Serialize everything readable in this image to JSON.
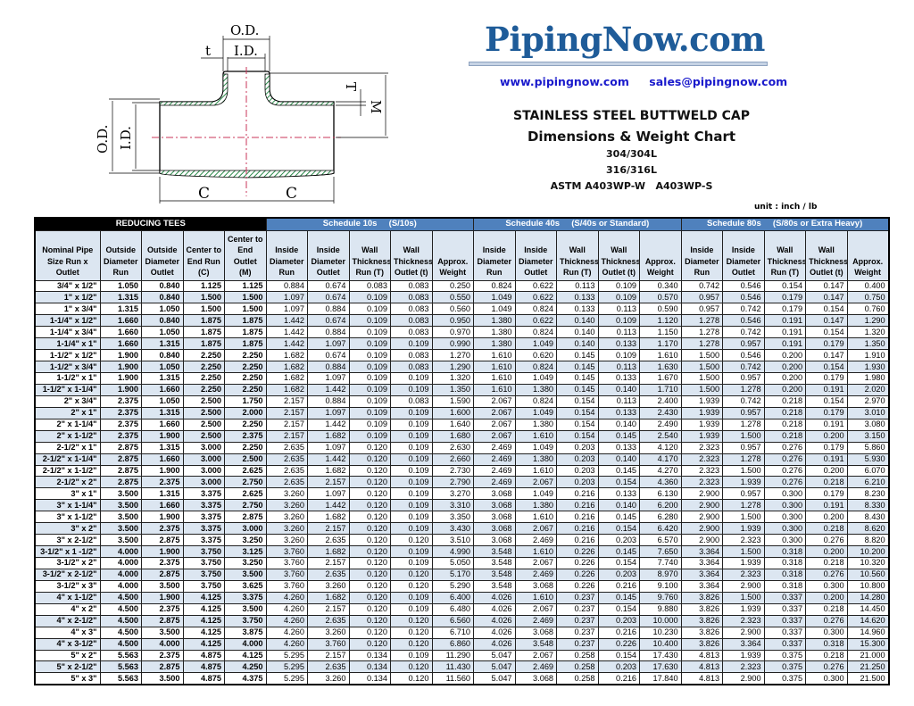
{
  "diagram": {
    "labels": {
      "od_top": "O.D.",
      "id_top": "I.D.",
      "t": "t",
      "T": "T",
      "M": "M",
      "od_left": "O.D.",
      "id_left": "I.D.",
      "c": "C"
    }
  },
  "brand": {
    "logo": "PipingNow.com",
    "website": "www.pipingnow.com",
    "email": "sales@pipingnow.com",
    "color": "#1f5c99"
  },
  "title": {
    "line1": "STAINLESS STEEL BUTTWELD CAP",
    "line2": "Dimensions & Weight Chart",
    "line3": "304/304L",
    "line4": "316/316L",
    "line5": "ASTM A403WP-W   A403WP-S"
  },
  "unit": "unit : inch / lb",
  "table": {
    "groups": [
      "REDUCING TEES",
      "Schedule 10s     (S/10s)",
      "Schedule 40s     (S/40s or Standard)",
      "Schedule 80s     (S/80s or Extra Heavy)"
    ],
    "headers": [
      "Nominal Pipe Size Run x Outlet",
      "Outside Diameter Run",
      "Outside Diameter Outlet",
      "Center to End Run (C)",
      "Center to End Outlet (M)",
      "Inside Diameter Run",
      "Inside Diameter Outlet",
      "Wall Thickness Run (T)",
      "Wall Thickness Outlet (t)",
      "Approx. Weight",
      "Inside Diameter Run",
      "Inside Diameter Outlet",
      "Wall Thickness Run (T)",
      "Wall Thickness Outlet (t)",
      "Approx. Weight",
      "Inside Diameter Run",
      "Inside Diameter Outlet",
      "Wall Thickness Run (T)",
      "Wall Thickness Outlet (t)",
      "Approx. Weight"
    ],
    "rows": [
      [
        "3/4\" x 1/2\"",
        "1.050",
        "0.840",
        "1.125",
        "1.125",
        "0.884",
        "0.674",
        "0.083",
        "0.083",
        "0.250",
        "0.824",
        "0.622",
        "0.113",
        "0.109",
        "0.340",
        "0.742",
        "0.546",
        "0.154",
        "0.147",
        "0.400"
      ],
      [
        "1\" x 1/2\"",
        "1.315",
        "0.840",
        "1.500",
        "1.500",
        "1.097",
        "0.674",
        "0.109",
        "0.083",
        "0.550",
        "1.049",
        "0.622",
        "0.133",
        "0.109",
        "0.570",
        "0.957",
        "0.546",
        "0.179",
        "0.147",
        "0.750"
      ],
      [
        "1\" x 3/4\"",
        "1.315",
        "1.050",
        "1.500",
        "1.500",
        "1.097",
        "0.884",
        "0.109",
        "0.083",
        "0.560",
        "1.049",
        "0.824",
        "0.133",
        "0.113",
        "0.590",
        "0.957",
        "0.742",
        "0.179",
        "0.154",
        "0.760"
      ],
      [
        "1-1/4\" x 1/2\"",
        "1.660",
        "0.840",
        "1.875",
        "1.875",
        "1.442",
        "0.674",
        "0.109",
        "0.083",
        "0.950",
        "1.380",
        "0.622",
        "0.140",
        "0.109",
        "1.120",
        "1.278",
        "0.546",
        "0.191",
        "0.147",
        "1.290"
      ],
      [
        "1-1/4\" x 3/4\"",
        "1.660",
        "1.050",
        "1.875",
        "1.875",
        "1.442",
        "0.884",
        "0.109",
        "0.083",
        "0.970",
        "1.380",
        "0.824",
        "0.140",
        "0.113",
        "1.150",
        "1.278",
        "0.742",
        "0.191",
        "0.154",
        "1.320"
      ],
      [
        "1-1/4\" x 1\"",
        "1.660",
        "1.315",
        "1.875",
        "1.875",
        "1.442",
        "1.097",
        "0.109",
        "0.109",
        "0.990",
        "1.380",
        "1.049",
        "0.140",
        "0.133",
        "1.170",
        "1.278",
        "0.957",
        "0.191",
        "0.179",
        "1.350"
      ],
      [
        "1-1/2\" x 1/2\"",
        "1.900",
        "0.840",
        "2.250",
        "2.250",
        "1.682",
        "0.674",
        "0.109",
        "0.083",
        "1.270",
        "1.610",
        "0.620",
        "0.145",
        "0.109",
        "1.610",
        "1.500",
        "0.546",
        "0.200",
        "0.147",
        "1.910"
      ],
      [
        "1-1/2\" x 3/4\"",
        "1.900",
        "1.050",
        "2.250",
        "2.250",
        "1.682",
        "0.884",
        "0.109",
        "0.083",
        "1.290",
        "1.610",
        "0.824",
        "0.145",
        "0.113",
        "1.630",
        "1.500",
        "0.742",
        "0.200",
        "0.154",
        "1.930"
      ],
      [
        "1-1/2\" x 1\"",
        "1.900",
        "1.315",
        "2.250",
        "2.250",
        "1.682",
        "1.097",
        "0.109",
        "0.109",
        "1.320",
        "1.610",
        "1.049",
        "0.145",
        "0.133",
        "1.670",
        "1.500",
        "0.957",
        "0.200",
        "0.179",
        "1.980"
      ],
      [
        "1-1/2\" x 1-1/4\"",
        "1.900",
        "1.660",
        "2.250",
        "2.250",
        "1.682",
        "1.442",
        "0.109",
        "0.109",
        "1.350",
        "1.610",
        "1.380",
        "0.145",
        "0.140",
        "1.710",
        "1.500",
        "1.278",
        "0.200",
        "0.191",
        "2.020"
      ],
      [
        "2\" x 3/4\"",
        "2.375",
        "1.050",
        "2.500",
        "1.750",
        "2.157",
        "0.884",
        "0.109",
        "0.083",
        "1.590",
        "2.067",
        "0.824",
        "0.154",
        "0.113",
        "2.400",
        "1.939",
        "0.742",
        "0.218",
        "0.154",
        "2.970"
      ],
      [
        "2\" x 1\"",
        "2.375",
        "1.315",
        "2.500",
        "2.000",
        "2.157",
        "1.097",
        "0.109",
        "0.109",
        "1.600",
        "2.067",
        "1.049",
        "0.154",
        "0.133",
        "2.430",
        "1.939",
        "0.957",
        "0.218",
        "0.179",
        "3.010"
      ],
      [
        "2\" x 1-1/4\"",
        "2.375",
        "1.660",
        "2.500",
        "2.250",
        "2.157",
        "1.442",
        "0.109",
        "0.109",
        "1.640",
        "2.067",
        "1.380",
        "0.154",
        "0.140",
        "2.490",
        "1.939",
        "1.278",
        "0.218",
        "0.191",
        "3.080"
      ],
      [
        "2\" x 1-1/2\"",
        "2.375",
        "1.900",
        "2.500",
        "2.375",
        "2.157",
        "1.682",
        "0.109",
        "0.109",
        "1.680",
        "2.067",
        "1.610",
        "0.154",
        "0.145",
        "2.540",
        "1.939",
        "1.500",
        "0.218",
        "0.200",
        "3.150"
      ],
      [
        "2-1/2\" x 1\"",
        "2.875",
        "1.315",
        "3.000",
        "2.250",
        "2.635",
        "1.097",
        "0.120",
        "0.109",
        "2.630",
        "2.469",
        "1.049",
        "0.203",
        "0.133",
        "4.120",
        "2.323",
        "0.957",
        "0.276",
        "0.179",
        "5.860"
      ],
      [
        "2-1/2\" x 1-1/4\"",
        "2.875",
        "1.660",
        "3.000",
        "2.500",
        "2.635",
        "1.442",
        "0.120",
        "0.109",
        "2.660",
        "2.469",
        "1.380",
        "0.203",
        "0.140",
        "4.170",
        "2.323",
        "1.278",
        "0.276",
        "0.191",
        "5.930"
      ],
      [
        "2-1/2\" x 1-1/2\"",
        "2.875",
        "1.900",
        "3.000",
        "2.625",
        "2.635",
        "1.682",
        "0.120",
        "0.109",
        "2.730",
        "2.469",
        "1.610",
        "0.203",
        "0.145",
        "4.270",
        "2.323",
        "1.500",
        "0.276",
        "0.200",
        "6.070"
      ],
      [
        "2-1/2\" x 2\"",
        "2.875",
        "2.375",
        "3.000",
        "2.750",
        "2.635",
        "2.157",
        "0.120",
        "0.109",
        "2.790",
        "2.469",
        "2.067",
        "0.203",
        "0.154",
        "4.360",
        "2.323",
        "1.939",
        "0.276",
        "0.218",
        "6.210"
      ],
      [
        "3\" x 1\"",
        "3.500",
        "1.315",
        "3.375",
        "2.625",
        "3.260",
        "1.097",
        "0.120",
        "0.109",
        "3.270",
        "3.068",
        "1.049",
        "0.216",
        "0.133",
        "6.130",
        "2.900",
        "0.957",
        "0.300",
        "0.179",
        "8.230"
      ],
      [
        "3\" x 1-1/4\"",
        "3.500",
        "1.660",
        "3.375",
        "2.750",
        "3.260",
        "1.442",
        "0.120",
        "0.109",
        "3.310",
        "3.068",
        "1.380",
        "0.216",
        "0.140",
        "6.200",
        "2.900",
        "1.278",
        "0.300",
        "0.191",
        "8.330"
      ],
      [
        "3\" x 1-1/2\"",
        "3.500",
        "1.900",
        "3.375",
        "2.875",
        "3.260",
        "1.682",
        "0.120",
        "0.109",
        "3.350",
        "3.068",
        "1.610",
        "0.216",
        "0.145",
        "6.280",
        "2.900",
        "1.500",
        "0.300",
        "0.200",
        "8.430"
      ],
      [
        "3\" x 2\"",
        "3.500",
        "2.375",
        "3.375",
        "3.000",
        "3.260",
        "2.157",
        "0.120",
        "0.109",
        "3.430",
        "3.068",
        "2.067",
        "0.216",
        "0.154",
        "6.420",
        "2.900",
        "1.939",
        "0.300",
        "0.218",
        "8.620"
      ],
      [
        "3\" x 2-1/2\"",
        "3.500",
        "2.875",
        "3.375",
        "3.250",
        "3.260",
        "2.635",
        "0.120",
        "0.120",
        "3.510",
        "3.068",
        "2.469",
        "0.216",
        "0.203",
        "6.570",
        "2.900",
        "2.323",
        "0.300",
        "0.276",
        "8.820"
      ],
      [
        "3-1/2\" x 1 -1/2\"",
        "4.000",
        "1.900",
        "3.750",
        "3.125",
        "3.760",
        "1.682",
        "0.120",
        "0.109",
        "4.990",
        "3.548",
        "1.610",
        "0.226",
        "0.145",
        "7.650",
        "3.364",
        "1.500",
        "0.318",
        "0.200",
        "10.200"
      ],
      [
        "3-1/2\" x 2\"",
        "4.000",
        "2.375",
        "3.750",
        "3.250",
        "3.760",
        "2.157",
        "0.120",
        "0.109",
        "5.050",
        "3.548",
        "2.067",
        "0.226",
        "0.154",
        "7.740",
        "3.364",
        "1.939",
        "0.318",
        "0.218",
        "10.320"
      ],
      [
        "3-1/2\" x 2-1/2\"",
        "4.000",
        "2.875",
        "3.750",
        "3.500",
        "3.760",
        "2.635",
        "0.120",
        "0.120",
        "5.170",
        "3.548",
        "2.469",
        "0.226",
        "0.203",
        "8.970",
        "3.364",
        "2.323",
        "0.318",
        "0.276",
        "10.560"
      ],
      [
        "3-1/2\" x 3\"",
        "4.000",
        "3.500",
        "3.750",
        "3.625",
        "3.760",
        "3.260",
        "0.120",
        "0.120",
        "5.290",
        "3.548",
        "3.068",
        "0.226",
        "0.216",
        "9.100",
        "3.364",
        "2.900",
        "0.318",
        "0.300",
        "10.800"
      ],
      [
        "4\" x 1-1/2\"",
        "4.500",
        "1.900",
        "4.125",
        "3.375",
        "4.260",
        "1.682",
        "0.120",
        "0.109",
        "6.400",
        "4.026",
        "1.610",
        "0.237",
        "0.145",
        "9.760",
        "3.826",
        "1.500",
        "0.337",
        "0.200",
        "14.280"
      ],
      [
        "4\" x 2\"",
        "4.500",
        "2.375",
        "4.125",
        "3.500",
        "4.260",
        "2.157",
        "0.120",
        "0.109",
        "6.480",
        "4.026",
        "2.067",
        "0.237",
        "0.154",
        "9.880",
        "3.826",
        "1.939",
        "0.337",
        "0.218",
        "14.450"
      ],
      [
        "4\" x 2-1/2\"",
        "4.500",
        "2.875",
        "4.125",
        "3.750",
        "4.260",
        "2.635",
        "0.120",
        "0.120",
        "6.560",
        "4.026",
        "2.469",
        "0.237",
        "0.203",
        "10.000",
        "3.826",
        "2.323",
        "0.337",
        "0.276",
        "14.620"
      ],
      [
        "4\" x 3\"",
        "4.500",
        "3.500",
        "4.125",
        "3.875",
        "4.260",
        "3.260",
        "0.120",
        "0.120",
        "6.710",
        "4.026",
        "3.068",
        "0.237",
        "0.216",
        "10.230",
        "3.826",
        "2.900",
        "0.337",
        "0.300",
        "14.960"
      ],
      [
        "4\" x 3-1/2\"",
        "4.500",
        "4.000",
        "4.125",
        "4.000",
        "4.260",
        "3.760",
        "0.120",
        "0.120",
        "6.860",
        "4.026",
        "3.548",
        "0.237",
        "0.226",
        "10.400",
        "3.826",
        "3.364",
        "0.337",
        "0.318",
        "15.300"
      ],
      [
        "5\" x 2\"",
        "5.563",
        "2.375",
        "4.875",
        "4.125",
        "5.295",
        "2.157",
        "0.134",
        "0.109",
        "11.290",
        "5.047",
        "2.067",
        "0.258",
        "0.154",
        "17.430",
        "4.813",
        "1.939",
        "0.375",
        "0.218",
        "21.000"
      ],
      [
        "5\" x 2-1/2\"",
        "5.563",
        "2.875",
        "4.875",
        "4.250",
        "5.295",
        "2.635",
        "0.134",
        "0.120",
        "11.430",
        "5.047",
        "2.469",
        "0.258",
        "0.203",
        "17.630",
        "4.813",
        "2.323",
        "0.375",
        "0.276",
        "21.250"
      ],
      [
        "5\" x 3\"",
        "5.563",
        "3.500",
        "4.875",
        "4.375",
        "5.295",
        "3.260",
        "0.134",
        "0.120",
        "11.560",
        "5.047",
        "3.068",
        "0.258",
        "0.216",
        "17.840",
        "4.813",
        "2.900",
        "0.375",
        "0.300",
        "21.500"
      ]
    ]
  }
}
